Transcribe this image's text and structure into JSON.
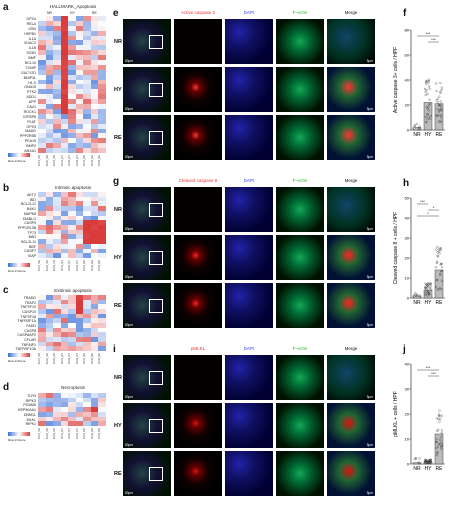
{
  "panels": {
    "a": {
      "label": "a",
      "title": "HALLMARK_Apoptosis",
      "groups": [
        "NR",
        "HY",
        "RE"
      ],
      "genes": [
        "GPX4",
        "RELA",
        "GSN",
        "HSPB1",
        "IL1A",
        "VDAC2",
        "IL1B",
        "SC5D",
        "BMF",
        "BCL10",
        "TXNIP",
        "GUCY2D",
        "BNIP3L",
        "H1-0",
        "GNA15",
        "PTK2",
        "ADD1",
        "APP",
        "CAV1",
        "ROCK1",
        "IGFBP6",
        "PLAT",
        "GPX3",
        "MADD",
        "PPP2R5B",
        "PEA15",
        "BMP2",
        "ANXA1"
      ],
      "samples": [
        "ICO1_NR",
        "ICO2_NR",
        "ICO3_NR",
        "ICO1_HY",
        "ICO2_HY",
        "ICO3_HY",
        "ICO1_RE",
        "ICO2_RE",
        "ICO3_RE"
      ],
      "scale": {
        "min": "-1.5",
        "mid": "0",
        "max": "1.5",
        "label": "Row Z-Score"
      }
    },
    "b": {
      "label": "b",
      "title": "Intrinsic apoptosis",
      "genes": [
        "AKT2",
        "BID",
        "BCL2L12",
        "BAK1",
        "MAPK8",
        "DIABLO",
        "CASP9",
        "PPP1R13B",
        "TP73",
        "BAD",
        "BCL2L11",
        "BBF",
        "CASP7",
        "XIAP"
      ],
      "scale": {
        "min": "-2",
        "mid": "0",
        "max": "2",
        "label": "Row Z-Score"
      }
    },
    "c": {
      "label": "c",
      "title": "Extrinsic apoptosis",
      "genes": [
        "TRADD",
        "TRAF2",
        "TNFSF10",
        "CASP10",
        "TNFSF18",
        "TNFRSF1A",
        "FADD",
        "CASP8",
        "CASP8AP2",
        "CFLAR",
        "TNFAIP1",
        "TNFRSF10A"
      ],
      "scale": {
        "min": "-2",
        "mid": "0",
        "max": "2",
        "label": "Row Z-Score"
      }
    },
    "d": {
      "label": "d",
      "title": "Necroptosis",
      "genes": [
        "TLR3",
        "RIPK3",
        "PGAM5",
        "HSP90AA1",
        "DNM1L",
        "MLKL",
        "RIPK1"
      ],
      "scale": {
        "min": "-2",
        "mid": "0",
        "max": "2",
        "label": "Row Z-Score"
      }
    },
    "e": {
      "label": "e",
      "marker": "Active caspase 3",
      "dapi": "DAPI",
      "actin": "F-Actin",
      "merge": "Merge",
      "rows": [
        "NR",
        "HY",
        "RE"
      ],
      "scale_big": "50µm",
      "scale_small": "5µm"
    },
    "g": {
      "label": "g",
      "marker": "Cleaved caspase 8",
      "dapi": "DAPI",
      "actin": "F-Actin",
      "merge": "Merge",
      "rows": [
        "NR",
        "HY",
        "RE"
      ],
      "scale_big": "50µm",
      "scale_small": "5µm"
    },
    "i": {
      "label": "i",
      "marker": "pMLKL",
      "dapi": "DAPI",
      "actin": "F-Actin",
      "merge": "Merge",
      "rows": [
        "NR",
        "HY",
        "RE"
      ],
      "scale_big": "50µm",
      "scale_small": "5µm"
    },
    "f": {
      "label": "f"
    },
    "h": {
      "label": "h"
    },
    "j": {
      "label": "j"
    }
  },
  "chart_data": [
    {
      "type": "bar",
      "panel": "f",
      "categories": [
        "NR",
        "HY",
        "RE"
      ],
      "values": [
        2,
        22,
        21
      ],
      "ylabel": "Active caspase 3+ cells / HPF",
      "ylim": [
        0,
        80
      ],
      "yticks": [
        "0",
        "20",
        "40",
        "60",
        "80"
      ],
      "significance": [
        "***",
        "***"
      ]
    },
    {
      "type": "bar",
      "panel": "h",
      "categories": [
        "NR",
        "HY",
        "RE"
      ],
      "values": [
        1,
        4,
        14
      ],
      "ylabel": "Cleaved caspase 8 + cells / HPF",
      "ylim": [
        0,
        50
      ],
      "yticks": [
        "0",
        "10",
        "20",
        "30",
        "40",
        "50"
      ],
      "significance": [
        "***",
        "*",
        "*"
      ]
    },
    {
      "type": "bar",
      "panel": "j",
      "categories": [
        "NR",
        "HY",
        "RE"
      ],
      "values": [
        0.5,
        1,
        12
      ],
      "ylabel": "pMLKL + cells / HPF",
      "ylim": [
        0,
        40
      ],
      "yticks": [
        "0",
        "10",
        "20",
        "30",
        "40"
      ],
      "significance": [
        "***",
        "***"
      ]
    }
  ]
}
